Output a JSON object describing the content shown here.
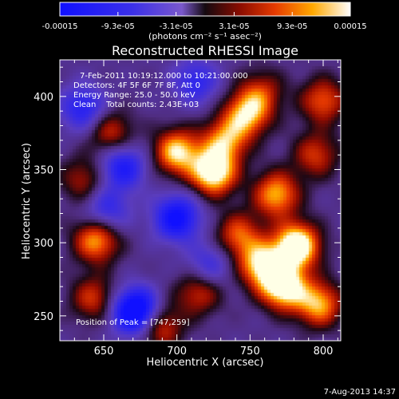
{
  "chart_data": {
    "type": "heatmap",
    "title": "Reconstructed RHESSI Image",
    "xlabel": "Heliocentric X (arcsec)",
    "ylabel": "Heliocentric Y (arcsec)",
    "xlim": [
      620,
      812
    ],
    "ylim": [
      233,
      425
    ],
    "x_ticks": [
      650,
      700,
      750,
      800
    ],
    "y_ticks": [
      250,
      300,
      350,
      400
    ],
    "colorbar": {
      "min": -0.00015,
      "max": 0.00015,
      "tick_labels": [
        "-0.00015",
        "-9.3e-05",
        "-3.1e-05",
        "3.1e-05",
        "9.3e-05",
        "0.00015"
      ],
      "unit_label": "(photons cm⁻² s⁻¹ asec⁻²)"
    },
    "info_lines": [
      "7-Feb-2011 10:19:12.000 to 10:21:00.000",
      "Detectors: 4F 5F 6F 7F 8F, Att 0",
      "Energy Range: 25.0 - 50.0 keV",
      "Clean    Total counts: 2.43E+03"
    ],
    "peak_label": "Position of Peak = [747,259]",
    "sources": [
      {
        "x": 700,
        "y": 362,
        "value": 1.0
      },
      {
        "x": 725,
        "y": 348,
        "value": 1.2
      },
      {
        "x": 748,
        "y": 388,
        "value": 0.9
      },
      {
        "x": 733,
        "y": 370,
        "value": 0.8
      },
      {
        "x": 768,
        "y": 333,
        "value": 0.9
      },
      {
        "x": 782,
        "y": 298,
        "value": 1.3
      },
      {
        "x": 773,
        "y": 270,
        "value": 1.2
      },
      {
        "x": 758,
        "y": 285,
        "value": 1.0
      },
      {
        "x": 797,
        "y": 258,
        "value": 0.9
      },
      {
        "x": 742,
        "y": 305,
        "value": 0.7
      },
      {
        "x": 645,
        "y": 302,
        "value": 0.9
      },
      {
        "x": 655,
        "y": 375,
        "value": 0.6
      },
      {
        "x": 636,
        "y": 343,
        "value": 0.5
      },
      {
        "x": 688,
        "y": 243,
        "value": 0.7
      },
      {
        "x": 715,
        "y": 266,
        "value": 0.6
      },
      {
        "x": 643,
        "y": 262,
        "value": 0.6
      },
      {
        "x": 800,
        "y": 397,
        "value": 0.7
      },
      {
        "x": 795,
        "y": 360,
        "value": 0.6
      },
      {
        "x": 758,
        "y": 403,
        "value": 0.5
      },
      {
        "x": 700,
        "y": 317,
        "value": -1.0
      },
      {
        "x": 672,
        "y": 253,
        "value": -1.4
      },
      {
        "x": 663,
        "y": 352,
        "value": -0.8
      },
      {
        "x": 636,
        "y": 392,
        "value": -0.7
      },
      {
        "x": 713,
        "y": 410,
        "value": -0.6
      },
      {
        "x": 652,
        "y": 322,
        "value": -0.6
      },
      {
        "x": 722,
        "y": 285,
        "value": -0.5
      }
    ]
  },
  "footer": {
    "timestamp": "7-Aug-2013 14:37"
  }
}
